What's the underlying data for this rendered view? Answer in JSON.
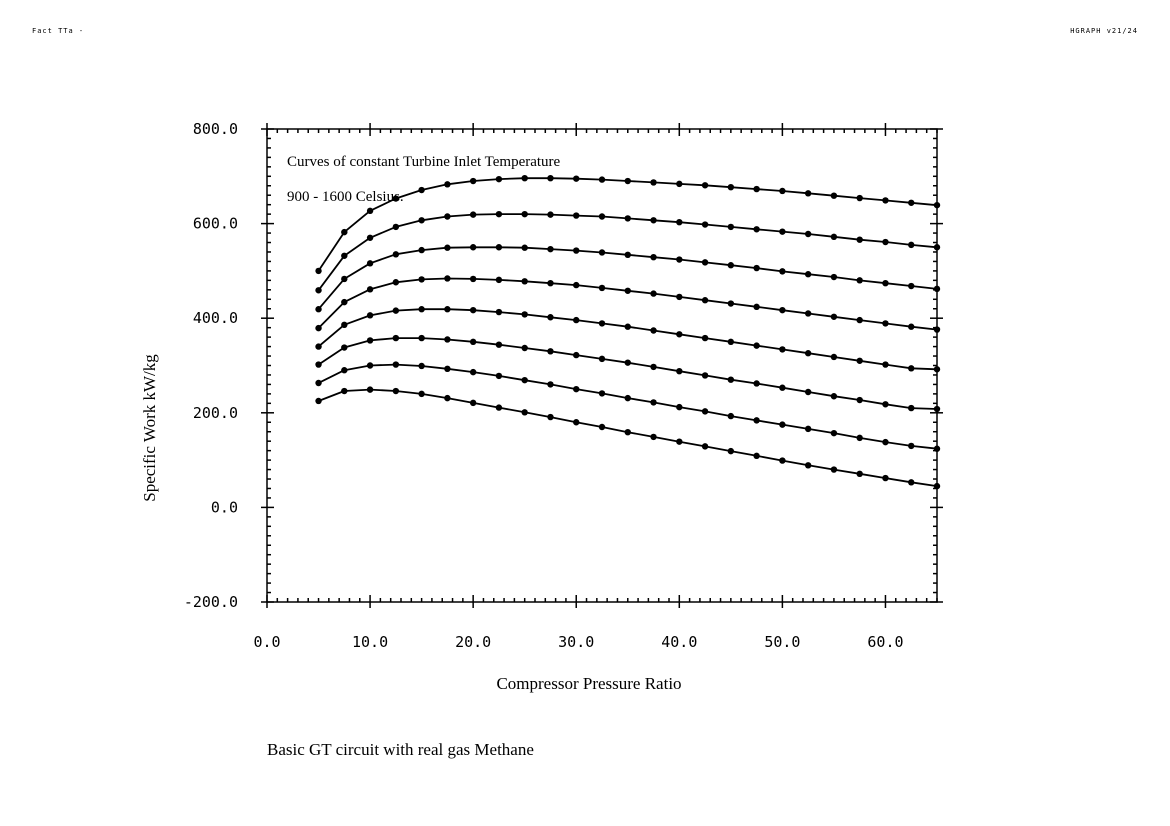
{
  "header": {
    "left": "Fact TTa -",
    "right": "HGRAPH v21/24"
  },
  "caption": "Basic GT circuit with real gas Methane",
  "chart_data": {
    "type": "line",
    "title": "",
    "annotations": [
      "Curves of constant Turbine Inlet Temperature",
      "900 - 1600 Celsius."
    ],
    "xlabel": "Compressor Pressure Ratio",
    "ylabel": "Specific Work kW/kg",
    "xlim": [
      0,
      65
    ],
    "ylim": [
      -200,
      800
    ],
    "xticks": [
      "0.0",
      "10.0",
      "20.0",
      "30.0",
      "40.0",
      "50.0",
      "60.0"
    ],
    "yticks": [
      "-200.0",
      "0.0",
      "200.0",
      "400.0",
      "600.0",
      "800.0"
    ],
    "grid": false,
    "legend": "none",
    "line_color": "#000000",
    "x": [
      5.0,
      7.5,
      10.0,
      12.5,
      15.0,
      17.5,
      20.0,
      22.5,
      25.0,
      27.5,
      30.0,
      32.5,
      35.0,
      37.5,
      40.0,
      42.5,
      45.0,
      47.5,
      50.0,
      52.5,
      55.0,
      57.5,
      60.0,
      62.5,
      65.0
    ],
    "series": [
      {
        "values": [
          500,
          582,
          627,
          653,
          671,
          683,
          690,
          694,
          696,
          696,
          695,
          693,
          690,
          687,
          684,
          681,
          677,
          673,
          669,
          664,
          659,
          654,
          649,
          644,
          639
        ]
      },
      {
        "values": [
          459,
          532,
          570,
          593,
          607,
          615,
          619,
          620,
          620,
          619,
          617,
          615,
          611,
          607,
          603,
          598,
          593,
          588,
          583,
          578,
          572,
          566,
          561,
          555,
          550
        ]
      },
      {
        "values": [
          419,
          483,
          516,
          535,
          544,
          549,
          550,
          550,
          549,
          546,
          543,
          539,
          534,
          529,
          524,
          518,
          512,
          506,
          499,
          493,
          487,
          480,
          474,
          468,
          462
        ]
      },
      {
        "values": [
          379,
          434,
          461,
          476,
          482,
          484,
          483,
          481,
          478,
          474,
          470,
          464,
          458,
          452,
          445,
          438,
          431,
          424,
          417,
          410,
          403,
          396,
          389,
          382,
          376
        ]
      },
      {
        "values": [
          340,
          386,
          406,
          416,
          419,
          419,
          417,
          413,
          408,
          402,
          396,
          389,
          382,
          374,
          366,
          358,
          350,
          342,
          334,
          326,
          318,
          310,
          302,
          294,
          292
        ]
      },
      {
        "values": [
          302,
          338,
          353,
          358,
          358,
          355,
          350,
          344,
          337,
          330,
          322,
          314,
          306,
          297,
          288,
          279,
          270,
          262,
          253,
          244,
          235,
          227,
          218,
          210,
          208
        ]
      },
      {
        "values": [
          263,
          290,
          300,
          302,
          299,
          293,
          286,
          278,
          269,
          260,
          250,
          241,
          231,
          222,
          212,
          203,
          193,
          184,
          175,
          166,
          157,
          147,
          138,
          130,
          124
        ]
      },
      {
        "values": [
          225,
          246,
          249,
          246,
          240,
          231,
          221,
          211,
          201,
          191,
          180,
          170,
          159,
          149,
          139,
          129,
          119,
          109,
          99,
          89,
          80,
          71,
          62,
          53,
          45
        ]
      }
    ]
  }
}
